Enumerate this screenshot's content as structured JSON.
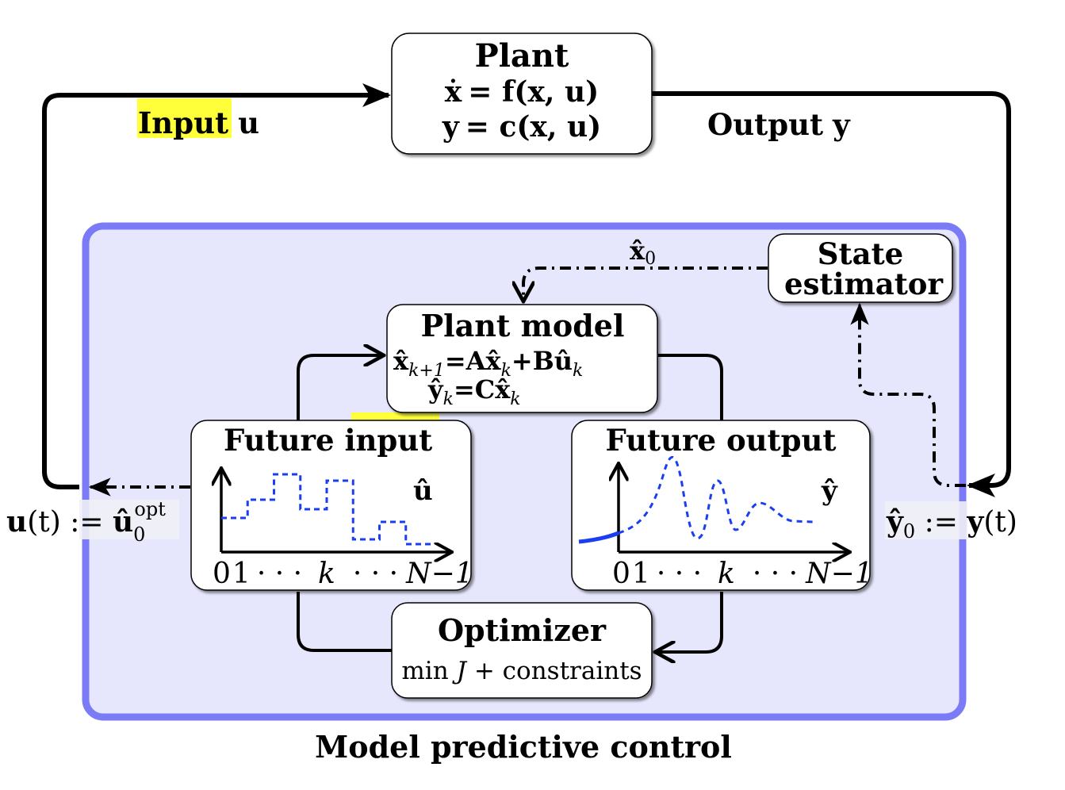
{
  "colors": {
    "mpc_fill": "#e6e6fc",
    "mpc_border": "#7b7bf7",
    "highlight": "#ffff3a",
    "curve": "#1a3ef0",
    "label_bg": "#ececf4"
  },
  "plant": {
    "title": "Plant",
    "eq1_lhs": "ẋ",
    "eq1_rhs": "= f(x, u)",
    "eq2_lhs": "y",
    "eq2_rhs": "= c(x, u)"
  },
  "signals": {
    "input_highlight": "Input",
    "input_var": "u",
    "output_word": "Output",
    "output_var": "y",
    "x0_hat": "x̂",
    "x0_sub": "0",
    "u_t_lhs": "u",
    "u_t_paren": "(t) := ",
    "u_t_rhs": "û",
    "u_t_sub": "0",
    "u_t_sup": "opt",
    "y0_lhs": "ŷ",
    "y0_sub": "0",
    "y0_mid": " := ",
    "y0_rhs": "y",
    "y0_paren": "(t)"
  },
  "state_estimator": {
    "line1": "State",
    "line2": "estimator"
  },
  "plant_model": {
    "title": "Plant model",
    "eq1_a": "x̂",
    "eq1_a_sub": "k+1",
    "eq1_b": "=Ax̂",
    "eq1_b_sub": "k",
    "eq1_c": "+Bû",
    "eq1_c_sub": "k",
    "eq2_a": "ŷ",
    "eq2_a_sub": "k",
    "eq2_b": "=Cx̂",
    "eq2_b_sub": "k"
  },
  "future_input": {
    "title_a": "Future ",
    "title_b": "input",
    "var": "û",
    "tick_0": "0",
    "tick_1": "1",
    "tick_dots1": "· · ·",
    "tick_k": "k",
    "tick_dots2": "· · ·",
    "tick_N": "N−1",
    "levels": [
      0.35,
      0.58,
      0.9,
      0.46,
      0.82,
      0.08,
      0.3,
      0.02
    ],
    "icon": "step-plot-icon"
  },
  "future_output": {
    "title": "Future output",
    "var": "ŷ",
    "tick_0": "0",
    "tick_1": "1",
    "tick_dots1": "· · ·",
    "tick_k": "k",
    "tick_dots2": "· · ·",
    "tick_N": "N−1",
    "icon": "oscillation-plot-icon"
  },
  "optimizer": {
    "title": "Optimizer",
    "line_a": "min ",
    "line_J": "J",
    "line_b": " + constraints"
  },
  "mpc": {
    "caption": "Model predictive control"
  }
}
